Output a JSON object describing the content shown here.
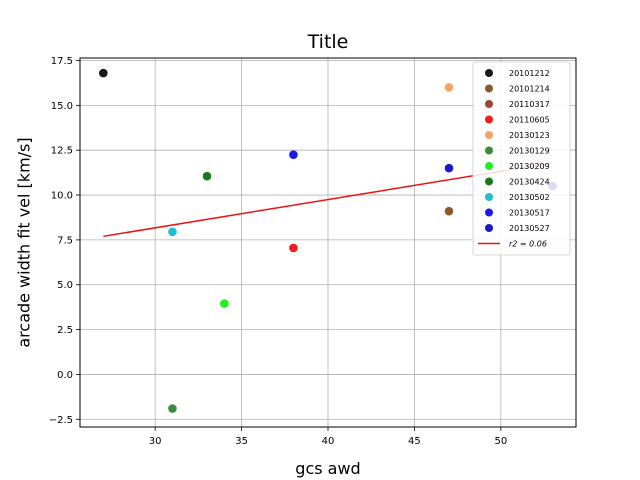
{
  "chart_data": {
    "type": "scatter",
    "title": "Title",
    "xlabel": "gcs awd",
    "ylabel": "arcade width fit vel [km/s]",
    "xlim": [
      25.65,
      54.35
    ],
    "ylim": [
      -2.93,
      17.64
    ],
    "xticks": [
      30,
      35,
      40,
      45,
      50
    ],
    "yticks": [
      -2.5,
      0.0,
      2.5,
      5.0,
      7.5,
      10.0,
      12.5,
      15.0,
      17.5
    ],
    "xtick_labels": [
      "30",
      "35",
      "40",
      "45",
      "50"
    ],
    "ytick_labels": [
      "−2.5",
      "0.0",
      "2.5",
      "5.0",
      "7.5",
      "10.0",
      "12.5",
      "15.0",
      "17.5"
    ],
    "grid": true,
    "legend_position": "top-right",
    "series": [
      {
        "name": "20101212",
        "color": "#1a1a1a",
        "points": [
          [
            27,
            16.8
          ]
        ]
      },
      {
        "name": "20101214",
        "color": "#8b5a2b",
        "points": [
          [
            47,
            9.1
          ]
        ]
      },
      {
        "name": "20110317",
        "color": "#a0403a",
        "points": []
      },
      {
        "name": "20110605",
        "color": "#ee1c1c",
        "points": [
          [
            38,
            7.05
          ]
        ]
      },
      {
        "name": "20130123",
        "color": "#f4a460",
        "points": [
          [
            47,
            16.0
          ]
        ]
      },
      {
        "name": "20130129",
        "color": "#3a8c3a",
        "points": [
          [
            31,
            -1.9
          ]
        ]
      },
      {
        "name": "20130209",
        "color": "#22ee22",
        "points": [
          [
            34,
            3.95
          ]
        ]
      },
      {
        "name": "20130424",
        "color": "#1a7a1a",
        "points": [
          [
            33,
            11.05
          ]
        ]
      },
      {
        "name": "20130502",
        "color": "#1fbfcf",
        "points": [
          [
            31,
            7.95
          ]
        ]
      },
      {
        "name": "20130517",
        "color": "#1a1aee",
        "points": [
          [
            38,
            12.25
          ]
        ]
      },
      {
        "name": "20130527",
        "color": "#1a1acc",
        "points": [
          [
            47,
            11.5
          ],
          [
            53,
            10.5
          ]
        ]
      }
    ],
    "fit_line": {
      "name": "r2 = 0.06",
      "color": "#ee1111",
      "x": [
        27,
        53
      ],
      "y": [
        7.7,
        11.8
      ]
    }
  }
}
